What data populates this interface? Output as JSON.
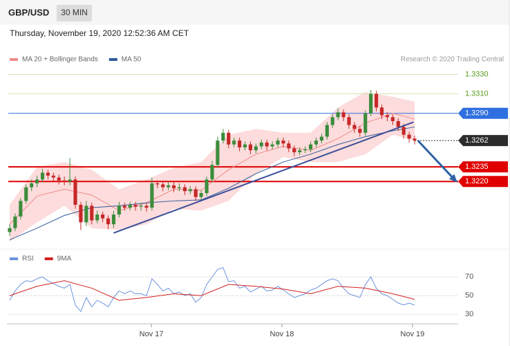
{
  "chart_data": {
    "type": "candlestick",
    "title": "GBP/USD",
    "timeframe": "30 MIN",
    "subtitle": "Thursday, November 19, 2020 12:52:36 AM CET",
    "source": "Research © 2020 Trading Central",
    "up_color": "#3c8c3c",
    "down_color": "#c62828",
    "candles": [
      [
        1.3168,
        1.3176,
        1.3164,
        1.3172
      ],
      [
        1.3172,
        1.3187,
        1.3169,
        1.3184
      ],
      [
        1.3184,
        1.3203,
        1.3181,
        1.32
      ],
      [
        1.32,
        1.3217,
        1.3197,
        1.3214
      ],
      [
        1.3214,
        1.3222,
        1.321,
        1.3218
      ],
      [
        1.3218,
        1.3226,
        1.3214,
        1.3222
      ],
      [
        1.3222,
        1.3233,
        1.3219,
        1.3229
      ],
      [
        1.3229,
        1.3232,
        1.3222,
        1.3226
      ],
      [
        1.3226,
        1.3229,
        1.322,
        1.3224
      ],
      [
        1.3224,
        1.3227,
        1.3217,
        1.3221
      ],
      [
        1.3221,
        1.3225,
        1.3216,
        1.322
      ],
      [
        1.322,
        1.3244,
        1.3216,
        1.3222
      ],
      [
        1.3222,
        1.3225,
        1.3192,
        1.3196
      ],
      [
        1.3196,
        1.3199,
        1.317,
        1.3178
      ],
      [
        1.3178,
        1.32,
        1.3174,
        1.3195
      ],
      [
        1.3195,
        1.3198,
        1.3176,
        1.318
      ],
      [
        1.318,
        1.319,
        1.3177,
        1.3186
      ],
      [
        1.3186,
        1.3189,
        1.3178,
        1.3182
      ],
      [
        1.3182,
        1.3185,
        1.3171,
        1.3176
      ],
      [
        1.3176,
        1.319,
        1.3172,
        1.3186
      ],
      [
        1.3186,
        1.3199,
        1.3183,
        1.3195
      ],
      [
        1.3195,
        1.3198,
        1.319,
        1.3193
      ],
      [
        1.3193,
        1.3199,
        1.319,
        1.3196
      ],
      [
        1.3196,
        1.3199,
        1.319,
        1.3194
      ],
      [
        1.3194,
        1.3198,
        1.319,
        1.3195
      ],
      [
        1.3195,
        1.3198,
        1.3189,
        1.3193
      ],
      [
        1.3193,
        1.3224,
        1.319,
        1.3218
      ],
      [
        1.3218,
        1.3221,
        1.3213,
        1.3217
      ],
      [
        1.3217,
        1.322,
        1.321,
        1.3214
      ],
      [
        1.3214,
        1.322,
        1.3211,
        1.3216
      ],
      [
        1.3216,
        1.3219,
        1.3209,
        1.3213
      ],
      [
        1.3213,
        1.3218,
        1.321,
        1.3214
      ],
      [
        1.3214,
        1.3217,
        1.3206,
        1.321
      ],
      [
        1.321,
        1.3215,
        1.3207,
        1.3212
      ],
      [
        1.3212,
        1.3215,
        1.32,
        1.3204
      ],
      [
        1.3204,
        1.3211,
        1.3201,
        1.3208
      ],
      [
        1.3208,
        1.3225,
        1.3205,
        1.3222
      ],
      [
        1.3222,
        1.3241,
        1.3219,
        1.3237
      ],
      [
        1.3237,
        1.3266,
        1.3234,
        1.3262
      ],
      [
        1.3262,
        1.3274,
        1.3259,
        1.327
      ],
      [
        1.327,
        1.3273,
        1.3254,
        1.3258
      ],
      [
        1.3258,
        1.3265,
        1.3255,
        1.3262
      ],
      [
        1.3262,
        1.3265,
        1.3251,
        1.3255
      ],
      [
        1.3255,
        1.3261,
        1.3252,
        1.3258
      ],
      [
        1.3258,
        1.3261,
        1.3248,
        1.3252
      ],
      [
        1.3252,
        1.3259,
        1.3249,
        1.3256
      ],
      [
        1.3256,
        1.3263,
        1.3253,
        1.326
      ],
      [
        1.326,
        1.3263,
        1.3252,
        1.3256
      ],
      [
        1.3256,
        1.3261,
        1.3253,
        1.3258
      ],
      [
        1.3258,
        1.3265,
        1.3255,
        1.3262
      ],
      [
        1.3262,
        1.3265,
        1.3255,
        1.3259
      ],
      [
        1.3259,
        1.3262,
        1.325,
        1.3254
      ],
      [
        1.3254,
        1.3257,
        1.3246,
        1.325
      ],
      [
        1.325,
        1.3255,
        1.3247,
        1.3252
      ],
      [
        1.3252,
        1.3256,
        1.3249,
        1.3253
      ],
      [
        1.3253,
        1.3261,
        1.325,
        1.3258
      ],
      [
        1.3258,
        1.3265,
        1.3255,
        1.3262
      ],
      [
        1.3262,
        1.3269,
        1.3259,
        1.3266
      ],
      [
        1.3266,
        1.3281,
        1.3263,
        1.3278
      ],
      [
        1.3278,
        1.3289,
        1.3275,
        1.3286
      ],
      [
        1.3286,
        1.3295,
        1.3283,
        1.3291
      ],
      [
        1.3291,
        1.3294,
        1.3282,
        1.3286
      ],
      [
        1.3286,
        1.3289,
        1.3274,
        1.3278
      ],
      [
        1.3278,
        1.3281,
        1.327,
        1.3274
      ],
      [
        1.3274,
        1.3277,
        1.3266,
        1.327
      ],
      [
        1.327,
        1.3293,
        1.3267,
        1.329
      ],
      [
        1.329,
        1.3314,
        1.3287,
        1.331
      ],
      [
        1.331,
        1.3313,
        1.3292,
        1.3296
      ],
      [
        1.3296,
        1.3299,
        1.3284,
        1.3288
      ],
      [
        1.3288,
        1.3291,
        1.3282,
        1.3286
      ],
      [
        1.3286,
        1.3289,
        1.3278,
        1.3282
      ],
      [
        1.3282,
        1.3285,
        1.3272,
        1.3276
      ],
      [
        1.3276,
        1.3279,
        1.3264,
        1.3268
      ],
      [
        1.3268,
        1.3271,
        1.326,
        1.3264
      ],
      [
        1.3264,
        1.3267,
        1.3258,
        1.3262
      ]
    ],
    "xlim": [
      -0.25,
      74
    ],
    "xticks": [
      {
        "value": 25.9,
        "label": "Nov 17"
      },
      {
        "value": 49.75,
        "label": "Nov 18"
      },
      {
        "value": 73.6,
        "label": "Nov 19"
      }
    ],
    "ylim": [
      1.3154,
      1.3346
    ],
    "price_levels": [
      {
        "value": 1.333,
        "label": "1.3330",
        "color": "#d3e3b0",
        "text_color": "#5a9a1a",
        "style": "solid",
        "badge": false
      },
      {
        "value": 1.331,
        "label": "1.3310",
        "color": "#d3e3b0",
        "text_color": "#5a9a1a",
        "style": "solid",
        "badge": false
      },
      {
        "value": 1.329,
        "label": "1.3290",
        "color": "#2f6fe0",
        "text_color": "#ffffff",
        "style": "solid",
        "badge": true
      },
      {
        "value": 1.3262,
        "label": "1.3262",
        "color": "#2b2b2b",
        "text_color": "#ffffff",
        "style": "dotted",
        "badge": true
      },
      {
        "value": 1.3235,
        "label": "1.3235",
        "color": "#e00000",
        "text_color": "#ffffff",
        "style": "solid",
        "badge": true
      },
      {
        "value": 1.322,
        "label": "1.3220",
        "color": "#e00000",
        "text_color": "#ffffff",
        "style": "solid",
        "badge": true
      }
    ],
    "indicator_x": [
      0,
      5,
      10,
      15,
      20,
      25,
      30,
      35,
      40,
      45,
      50,
      55,
      60,
      65,
      70,
      74
    ],
    "series": [
      {
        "name": "MA 20 + Bollinger Bands",
        "color": "#f08a8a",
        "band_color": "#fcdcdc",
        "values": [
          1.3176,
          1.3205,
          1.3212,
          1.3206,
          1.319,
          1.3198,
          1.3212,
          1.3211,
          1.3232,
          1.3248,
          1.3256,
          1.3252,
          1.3264,
          1.328,
          1.329,
          1.3284
        ],
        "band_upper": [
          1.3196,
          1.3235,
          1.324,
          1.3232,
          1.3212,
          1.3222,
          1.3234,
          1.324,
          1.3268,
          1.3274,
          1.327,
          1.327,
          1.3296,
          1.3312,
          1.3307,
          1.3302
        ],
        "band_lower": [
          1.3158,
          1.3178,
          1.3195,
          1.3172,
          1.317,
          1.3176,
          1.3192,
          1.319,
          1.32,
          1.3228,
          1.3245,
          1.324,
          1.324,
          1.3248,
          1.3268,
          1.3262
        ]
      },
      {
        "name": "MA 50",
        "color": "#2f5b9a",
        "values": [
          1.316,
          1.3172,
          1.3185,
          1.3193,
          1.3195,
          1.3198,
          1.32,
          1.3201,
          1.3213,
          1.3228,
          1.324,
          1.3248,
          1.3258,
          1.3266,
          1.3272,
          1.3276
        ]
      }
    ],
    "trendline": {
      "x": [
        19,
        73.8
      ],
      "values": [
        1.3167,
        1.3281
      ],
      "color": "#3b4f9a"
    },
    "arrow": {
      "x": [
        74.6,
        81.6
      ],
      "values": [
        1.3262,
        1.322
      ],
      "color": "#2d62a6"
    },
    "rsi": {
      "ylim": [
        22,
        85
      ],
      "yticks": [
        70,
        50,
        30
      ],
      "series": [
        {
          "name": "RSI",
          "color": "#6b93dc",
          "values": [
            45,
            55,
            62,
            66,
            65,
            68,
            70,
            66,
            63,
            60,
            58,
            62,
            40,
            33,
            48,
            38,
            45,
            42,
            38,
            48,
            55,
            52,
            55,
            52,
            52,
            50,
            68,
            62,
            55,
            58,
            52,
            54,
            50,
            52,
            43,
            48,
            62,
            70,
            78,
            80,
            65,
            66,
            58,
            60,
            54,
            57,
            60,
            55,
            56,
            60,
            56,
            52,
            48,
            50,
            52,
            56,
            58,
            62,
            66,
            68,
            66,
            58,
            52,
            50,
            48,
            62,
            70,
            58,
            52,
            50,
            46,
            42,
            40,
            42,
            40
          ]
        },
        {
          "name": "9MA",
          "color": "#d42020",
          "x": [
            0,
            5,
            10,
            15,
            20,
            25,
            30,
            35,
            40,
            45,
            50,
            55,
            60,
            65,
            70,
            74
          ],
          "values": [
            50,
            60,
            66,
            58,
            45,
            48,
            52,
            50,
            62,
            60,
            57,
            52,
            60,
            58,
            52,
            46
          ]
        }
      ]
    }
  }
}
